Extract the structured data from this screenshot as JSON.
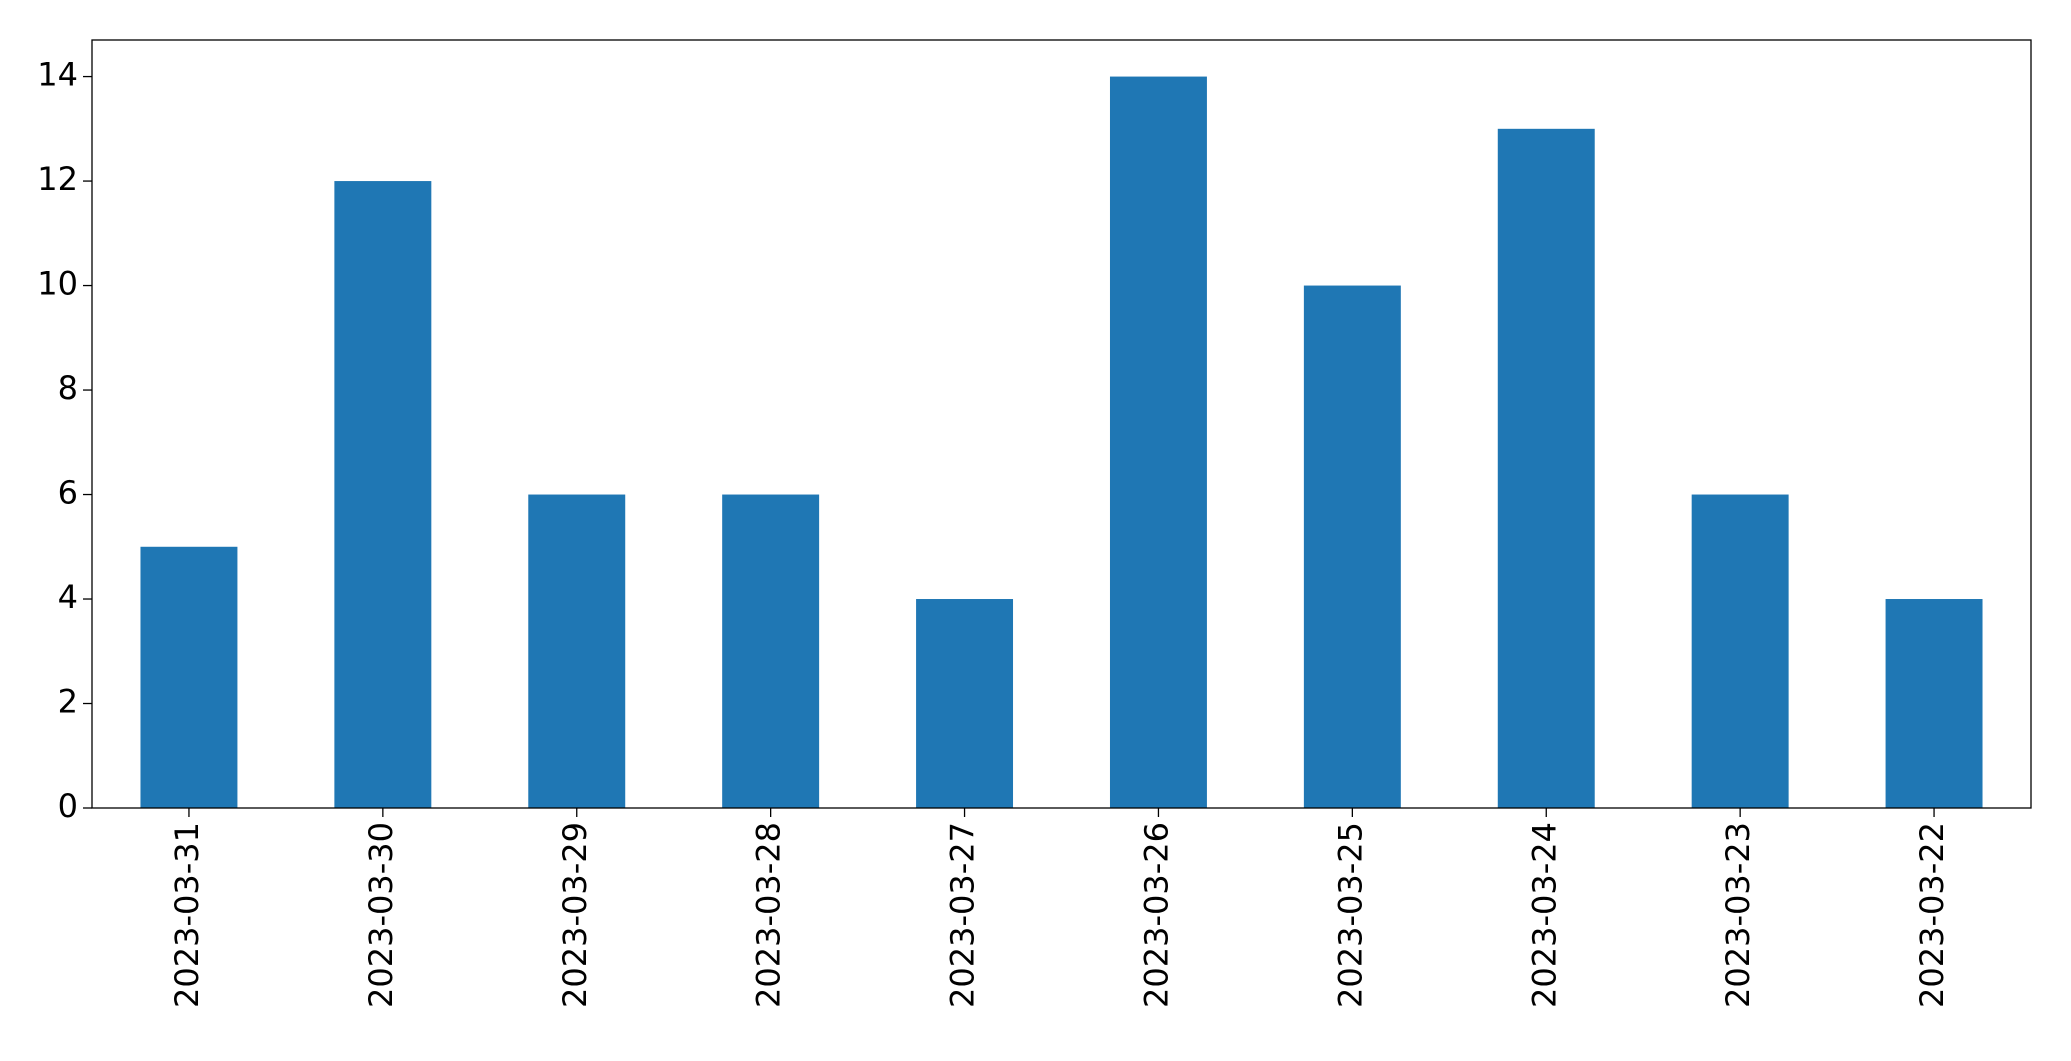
{
  "chart_data": {
    "type": "bar",
    "categories": [
      "2023-03-31",
      "2023-03-30",
      "2023-03-29",
      "2023-03-28",
      "2023-03-27",
      "2023-03-26",
      "2023-03-25",
      "2023-03-24",
      "2023-03-23",
      "2023-03-22"
    ],
    "values": [
      5,
      12,
      6,
      6,
      4,
      14,
      10,
      13,
      6,
      4
    ],
    "color": "#1f77b4",
    "ylim": [
      0,
      14.7
    ],
    "yticks": [
      0,
      2,
      4,
      6,
      8,
      10,
      12,
      14
    ],
    "grid": false
  }
}
